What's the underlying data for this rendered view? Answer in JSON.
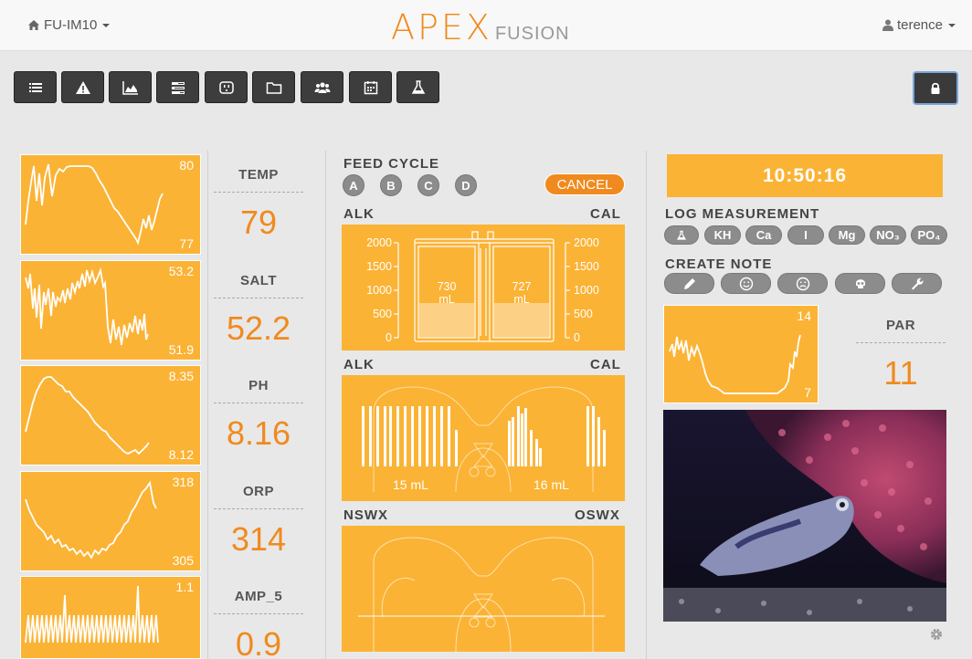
{
  "header": {
    "device_name": "FU-IM10",
    "logo_main": "APEX",
    "logo_sub": "FUSION",
    "user_name": "terence"
  },
  "toolbar": {
    "buttons": [
      "list-icon",
      "warning-icon",
      "area-chart-icon",
      "tasks-icon",
      "outlet-icon",
      "folder-icon",
      "users-icon",
      "calendar-icon",
      "flask-icon"
    ],
    "lock": "lock-icon"
  },
  "sparklines": [
    {
      "hi": "80",
      "lo": "77",
      "points": [
        [
          5,
          76
        ],
        [
          8,
          50
        ],
        [
          11,
          30
        ],
        [
          14,
          12
        ],
        [
          17,
          50
        ],
        [
          20,
          20
        ],
        [
          23,
          55
        ],
        [
          26,
          25
        ],
        [
          30,
          10
        ],
        [
          34,
          45
        ],
        [
          38,
          22
        ],
        [
          42,
          15
        ],
        [
          46,
          18
        ],
        [
          50,
          13
        ],
        [
          54,
          12
        ],
        [
          58,
          12
        ],
        [
          62,
          12
        ],
        [
          66,
          12
        ],
        [
          70,
          12
        ],
        [
          74,
          12
        ],
        [
          78,
          14
        ],
        [
          82,
          20
        ],
        [
          86,
          28
        ],
        [
          90,
          34
        ],
        [
          94,
          42
        ],
        [
          98,
          50
        ],
        [
          102,
          58
        ],
        [
          106,
          62
        ],
        [
          110,
          68
        ],
        [
          114,
          74
        ],
        [
          118,
          80
        ],
        [
          122,
          86
        ],
        [
          126,
          92
        ],
        [
          128,
          96
        ],
        [
          131,
          84
        ],
        [
          134,
          70
        ],
        [
          137,
          80
        ],
        [
          140,
          66
        ],
        [
          143,
          82
        ],
        [
          146,
          72
        ],
        [
          149,
          60
        ],
        [
          152,
          48
        ],
        [
          155,
          42
        ]
      ]
    },
    {
      "hi": "53.2",
      "lo": "51.9",
      "points": [
        [
          5,
          18
        ],
        [
          8,
          30
        ],
        [
          10,
          14
        ],
        [
          13,
          52
        ],
        [
          15,
          30
        ],
        [
          17,
          62
        ],
        [
          20,
          26
        ],
        [
          22,
          74
        ],
        [
          25,
          34
        ],
        [
          27,
          48
        ],
        [
          30,
          30
        ],
        [
          33,
          60
        ],
        [
          35,
          34
        ],
        [
          38,
          50
        ],
        [
          40,
          40
        ],
        [
          43,
          44
        ],
        [
          46,
          32
        ],
        [
          48,
          46
        ],
        [
          51,
          30
        ],
        [
          54,
          42
        ],
        [
          56,
          24
        ],
        [
          59,
          34
        ],
        [
          62,
          22
        ],
        [
          64,
          30
        ],
        [
          67,
          14
        ],
        [
          70,
          28
        ],
        [
          72,
          10
        ],
        [
          75,
          22
        ],
        [
          78,
          12
        ],
        [
          81,
          24
        ],
        [
          84,
          18
        ],
        [
          87,
          10
        ],
        [
          90,
          28
        ],
        [
          92,
          24
        ],
        [
          95,
          72
        ],
        [
          98,
          90
        ],
        [
          101,
          64
        ],
        [
          104,
          86
        ],
        [
          107,
          72
        ],
        [
          110,
          92
        ],
        [
          113,
          70
        ],
        [
          116,
          84
        ],
        [
          119,
          68
        ],
        [
          122,
          78
        ],
        [
          125,
          60
        ],
        [
          128,
          80
        ],
        [
          130,
          64
        ],
        [
          133,
          76
        ],
        [
          135,
          58
        ],
        [
          137,
          86
        ],
        [
          139,
          80
        ]
      ]
    },
    {
      "hi": "8.35",
      "lo": "8.12",
      "points": [
        [
          5,
          72
        ],
        [
          9,
          56
        ],
        [
          13,
          40
        ],
        [
          17,
          28
        ],
        [
          21,
          20
        ],
        [
          25,
          14
        ],
        [
          29,
          12
        ],
        [
          33,
          12
        ],
        [
          37,
          16
        ],
        [
          41,
          20
        ],
        [
          45,
          22
        ],
        [
          49,
          28
        ],
        [
          53,
          28
        ],
        [
          57,
          34
        ],
        [
          61,
          38
        ],
        [
          65,
          42
        ],
        [
          69,
          46
        ],
        [
          73,
          50
        ],
        [
          77,
          56
        ],
        [
          81,
          62
        ],
        [
          85,
          66
        ],
        [
          89,
          70
        ],
        [
          93,
          72
        ],
        [
          97,
          78
        ],
        [
          101,
          82
        ],
        [
          105,
          86
        ],
        [
          109,
          90
        ],
        [
          113,
          94
        ],
        [
          117,
          96
        ],
        [
          121,
          94
        ],
        [
          125,
          92
        ],
        [
          129,
          96
        ],
        [
          133,
          92
        ],
        [
          137,
          88
        ],
        [
          140,
          84
        ]
      ]
    },
    {
      "hi": "318",
      "lo": "305",
      "points": [
        [
          5,
          30
        ],
        [
          9,
          42
        ],
        [
          13,
          50
        ],
        [
          17,
          58
        ],
        [
          21,
          62
        ],
        [
          25,
          66
        ],
        [
          29,
          74
        ],
        [
          33,
          70
        ],
        [
          37,
          78
        ],
        [
          41,
          74
        ],
        [
          45,
          82
        ],
        [
          49,
          80
        ],
        [
          53,
          86
        ],
        [
          57,
          84
        ],
        [
          61,
          90
        ],
        [
          65,
          86
        ],
        [
          69,
          92
        ],
        [
          73,
          88
        ],
        [
          77,
          94
        ],
        [
          81,
          86
        ],
        [
          85,
          90
        ],
        [
          89,
          84
        ],
        [
          93,
          86
        ],
        [
          97,
          80
        ],
        [
          101,
          78
        ],
        [
          105,
          70
        ],
        [
          109,
          66
        ],
        [
          113,
          58
        ],
        [
          117,
          54
        ],
        [
          121,
          44
        ],
        [
          125,
          38
        ],
        [
          129,
          30
        ],
        [
          133,
          22
        ],
        [
          137,
          18
        ],
        [
          141,
          12
        ],
        [
          145,
          34
        ],
        [
          148,
          40
        ]
      ]
    },
    {
      "hi": "1.1",
      "lo": "",
      "points": [
        [
          5,
          72
        ],
        [
          8,
          42
        ],
        [
          10,
          72
        ],
        [
          13,
          42
        ],
        [
          15,
          72
        ],
        [
          18,
          42
        ],
        [
          20,
          72
        ],
        [
          23,
          42
        ],
        [
          25,
          72
        ],
        [
          28,
          42
        ],
        [
          30,
          72
        ],
        [
          33,
          42
        ],
        [
          35,
          72
        ],
        [
          38,
          42
        ],
        [
          40,
          72
        ],
        [
          43,
          42
        ],
        [
          45,
          72
        ],
        [
          48,
          20
        ],
        [
          50,
          72
        ],
        [
          53,
          42
        ],
        [
          55,
          72
        ],
        [
          58,
          42
        ],
        [
          60,
          72
        ],
        [
          63,
          42
        ],
        [
          65,
          72
        ],
        [
          68,
          42
        ],
        [
          70,
          72
        ],
        [
          73,
          42
        ],
        [
          75,
          72
        ],
        [
          78,
          42
        ],
        [
          80,
          72
        ],
        [
          83,
          42
        ],
        [
          85,
          72
        ],
        [
          88,
          42
        ],
        [
          90,
          72
        ],
        [
          93,
          42
        ],
        [
          95,
          72
        ],
        [
          98,
          42
        ],
        [
          100,
          72
        ],
        [
          103,
          42
        ],
        [
          105,
          72
        ],
        [
          108,
          42
        ],
        [
          110,
          72
        ],
        [
          113,
          42
        ],
        [
          115,
          72
        ],
        [
          118,
          42
        ],
        [
          120,
          72
        ],
        [
          123,
          42
        ],
        [
          125,
          72
        ],
        [
          128,
          10
        ],
        [
          130,
          72
        ],
        [
          133,
          42
        ],
        [
          135,
          72
        ],
        [
          138,
          42
        ],
        [
          140,
          72
        ],
        [
          143,
          42
        ],
        [
          145,
          72
        ],
        [
          148,
          42
        ],
        [
          150,
          72
        ]
      ]
    }
  ],
  "metrics": [
    {
      "label": "TEMP",
      "value": "79"
    },
    {
      "label": "SALT",
      "value": "52.2"
    },
    {
      "label": "PH",
      "value": "8.16"
    },
    {
      "label": "ORP",
      "value": "314"
    },
    {
      "label": "AMP_5",
      "value": "0.9"
    }
  ],
  "feed_cycle": {
    "title": "FEED CYCLE",
    "buttons": [
      "A",
      "B",
      "C",
      "D"
    ],
    "cancel": "CANCEL"
  },
  "dosing": {
    "left_label": "ALK",
    "right_label": "CAL",
    "scale": [
      "2000",
      "1500",
      "1000",
      "500",
      "0"
    ],
    "left_volume": "730",
    "right_volume": "727",
    "unit": "mL"
  },
  "doser_bars": {
    "left_label": "ALK",
    "right_label": "CAL",
    "left_amount": "15 mL",
    "right_amount": "16 mL"
  },
  "pumps": {
    "left_label": "NSWX",
    "right_label": "OSWX"
  },
  "clock": "10:50:16",
  "log_measurement": {
    "title": "LOG MEASUREMENT",
    "items": [
      "flask-icon",
      "KH",
      "Ca",
      "I",
      "Mg",
      "NO₃",
      "PO₄"
    ]
  },
  "create_note": {
    "title": "CREATE NOTE",
    "items": [
      "pencil-icon",
      "smile-icon",
      "frown-icon",
      "skull-icon",
      "wrench-icon"
    ]
  },
  "par": {
    "label": "PAR",
    "value": "11",
    "hi": "14",
    "lo": "7",
    "points": [
      [
        6,
        50
      ],
      [
        9,
        42
      ],
      [
        11,
        56
      ],
      [
        14,
        34
      ],
      [
        16,
        48
      ],
      [
        19,
        40
      ],
      [
        21,
        52
      ],
      [
        24,
        38
      ],
      [
        27,
        60
      ],
      [
        30,
        46
      ],
      [
        33,
        54
      ],
      [
        36,
        44
      ],
      [
        39,
        52
      ],
      [
        42,
        62
      ],
      [
        45,
        74
      ],
      [
        48,
        82
      ],
      [
        52,
        88
      ],
      [
        58,
        90
      ],
      [
        66,
        96
      ],
      [
        74,
        96
      ],
      [
        84,
        96
      ],
      [
        94,
        96
      ],
      [
        104,
        96
      ],
      [
        114,
        96
      ],
      [
        124,
        96
      ],
      [
        132,
        90
      ],
      [
        136,
        82
      ],
      [
        138,
        64
      ],
      [
        141,
        68
      ],
      [
        143,
        50
      ],
      [
        145,
        56
      ],
      [
        147,
        40
      ],
      [
        149,
        32
      ]
    ]
  },
  "colors": {
    "accent": "#fbb335",
    "orange": "#f08a1e",
    "toolbar": "#3d3d3d"
  }
}
